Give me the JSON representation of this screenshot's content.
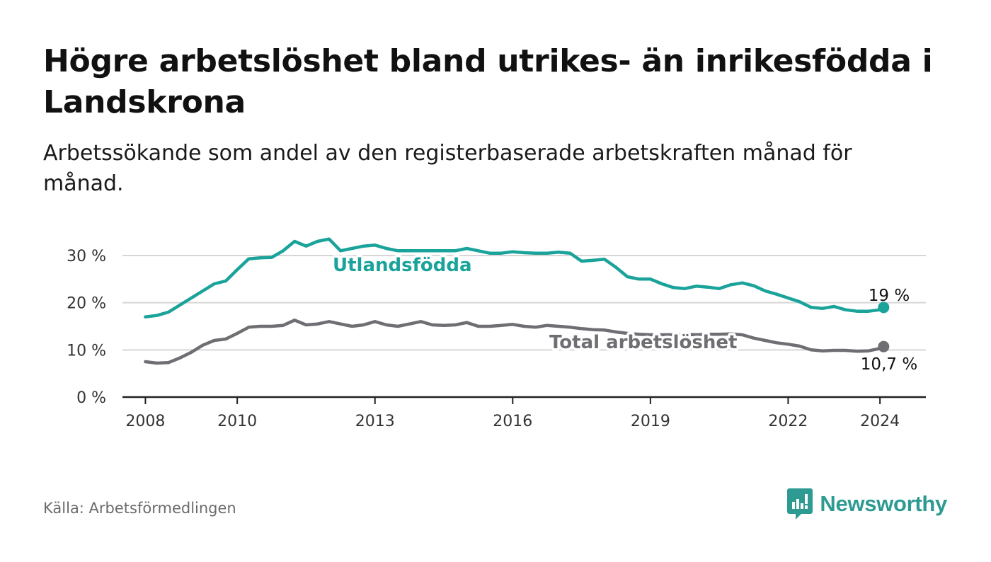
{
  "title": "Högre arbetslöshet bland utrikes- än inrikesfödda i Landskrona",
  "subtitle": "Arbetssökande som andel av den registerbaserade arbetskraften månad för månad.",
  "source": "Källa: Arbetsförmedlingen",
  "brand": {
    "name": "Newsworthy",
    "color": "#2e9b93",
    "icon": "newsworthy-logo-icon"
  },
  "chart_data": {
    "type": "line",
    "title": "Högre arbetslöshet bland utrikes- än inrikesfödda i Landskrona",
    "xlabel": "",
    "ylabel": "",
    "xlim": [
      2007.5,
      2025
    ],
    "ylim": [
      0,
      33
    ],
    "grid": true,
    "y_ticks": [
      0,
      10,
      20,
      30
    ],
    "y_tick_labels": [
      "0 %",
      "10 %",
      "20 %",
      "30 %"
    ],
    "x_ticks": [
      2008,
      2010,
      2013,
      2016,
      2019,
      2022,
      2024
    ],
    "x_tick_labels": [
      "2008",
      "2010",
      "2013",
      "2016",
      "2019",
      "2022",
      "2024"
    ],
    "series": [
      {
        "name": "Utlandsfödda",
        "color": "#1aa39a",
        "end_label": "19 %",
        "x": [
          2008.0,
          2008.25,
          2008.5,
          2008.75,
          2009.0,
          2009.25,
          2009.5,
          2009.75,
          2010.0,
          2010.25,
          2010.5,
          2010.75,
          2011.0,
          2011.25,
          2011.5,
          2011.75,
          2012.0,
          2012.25,
          2012.5,
          2012.75,
          2013.0,
          2013.25,
          2013.5,
          2013.75,
          2014.0,
          2014.25,
          2014.5,
          2014.75,
          2015.0,
          2015.25,
          2015.5,
          2015.75,
          2016.0,
          2016.25,
          2016.5,
          2016.75,
          2017.0,
          2017.25,
          2017.5,
          2017.75,
          2018.0,
          2018.25,
          2018.5,
          2018.75,
          2019.0,
          2019.25,
          2019.5,
          2019.75,
          2020.0,
          2020.25,
          2020.5,
          2020.75,
          2021.0,
          2021.25,
          2021.5,
          2021.75,
          2022.0,
          2022.25,
          2022.5,
          2022.75,
          2023.0,
          2023.25,
          2023.5,
          2023.75,
          2024.0,
          2024.08
        ],
        "values": [
          17.0,
          17.3,
          18.0,
          19.5,
          21.0,
          22.5,
          24.0,
          24.6,
          27.0,
          29.3,
          29.5,
          29.6,
          31.0,
          33.0,
          32.0,
          33.0,
          33.5,
          31.0,
          31.5,
          32.0,
          32.2,
          31.5,
          31.0,
          31.0,
          31.0,
          31.0,
          31.0,
          31.0,
          31.5,
          31.0,
          30.5,
          30.5,
          30.8,
          30.6,
          30.5,
          30.5,
          30.7,
          30.5,
          28.8,
          29.0,
          29.2,
          27.5,
          25.5,
          25.0,
          25.0,
          24.0,
          23.2,
          23.0,
          23.5,
          23.3,
          23.0,
          23.8,
          24.2,
          23.6,
          22.5,
          21.8,
          21.0,
          20.2,
          19.0,
          18.8,
          19.2,
          18.5,
          18.2,
          18.2,
          18.5,
          19.0
        ]
      },
      {
        "name": "Total arbetslöshet",
        "color": "#6e6e73",
        "end_label": "10,7 %",
        "x": [
          2008.0,
          2008.25,
          2008.5,
          2008.75,
          2009.0,
          2009.25,
          2009.5,
          2009.75,
          2010.0,
          2010.25,
          2010.5,
          2010.75,
          2011.0,
          2011.25,
          2011.5,
          2011.75,
          2012.0,
          2012.25,
          2012.5,
          2012.75,
          2013.0,
          2013.25,
          2013.5,
          2013.75,
          2014.0,
          2014.25,
          2014.5,
          2014.75,
          2015.0,
          2015.25,
          2015.5,
          2015.75,
          2016.0,
          2016.25,
          2016.5,
          2016.75,
          2017.0,
          2017.25,
          2017.5,
          2017.75,
          2018.0,
          2018.25,
          2018.5,
          2018.75,
          2019.0,
          2019.25,
          2019.5,
          2019.75,
          2020.0,
          2020.25,
          2020.5,
          2020.75,
          2021.0,
          2021.25,
          2021.5,
          2021.75,
          2022.0,
          2022.25,
          2022.5,
          2022.75,
          2023.0,
          2023.25,
          2023.5,
          2023.75,
          2024.0,
          2024.08
        ],
        "values": [
          7.5,
          7.2,
          7.3,
          8.3,
          9.5,
          11.0,
          12.0,
          12.3,
          13.5,
          14.8,
          15.0,
          15.0,
          15.2,
          16.3,
          15.3,
          15.5,
          16.0,
          15.5,
          15.0,
          15.3,
          16.0,
          15.3,
          15.0,
          15.5,
          16.0,
          15.3,
          15.2,
          15.3,
          15.8,
          15.0,
          15.0,
          15.2,
          15.4,
          15.0,
          14.8,
          15.2,
          15.0,
          14.8,
          14.5,
          14.3,
          14.2,
          13.8,
          13.5,
          13.3,
          13.2,
          13.2,
          13.2,
          13.3,
          13.2,
          13.3,
          13.3,
          13.4,
          13.2,
          12.5,
          12.0,
          11.5,
          11.2,
          10.8,
          10.0,
          9.8,
          9.9,
          9.9,
          9.7,
          9.8,
          10.3,
          10.7
        ]
      }
    ]
  }
}
